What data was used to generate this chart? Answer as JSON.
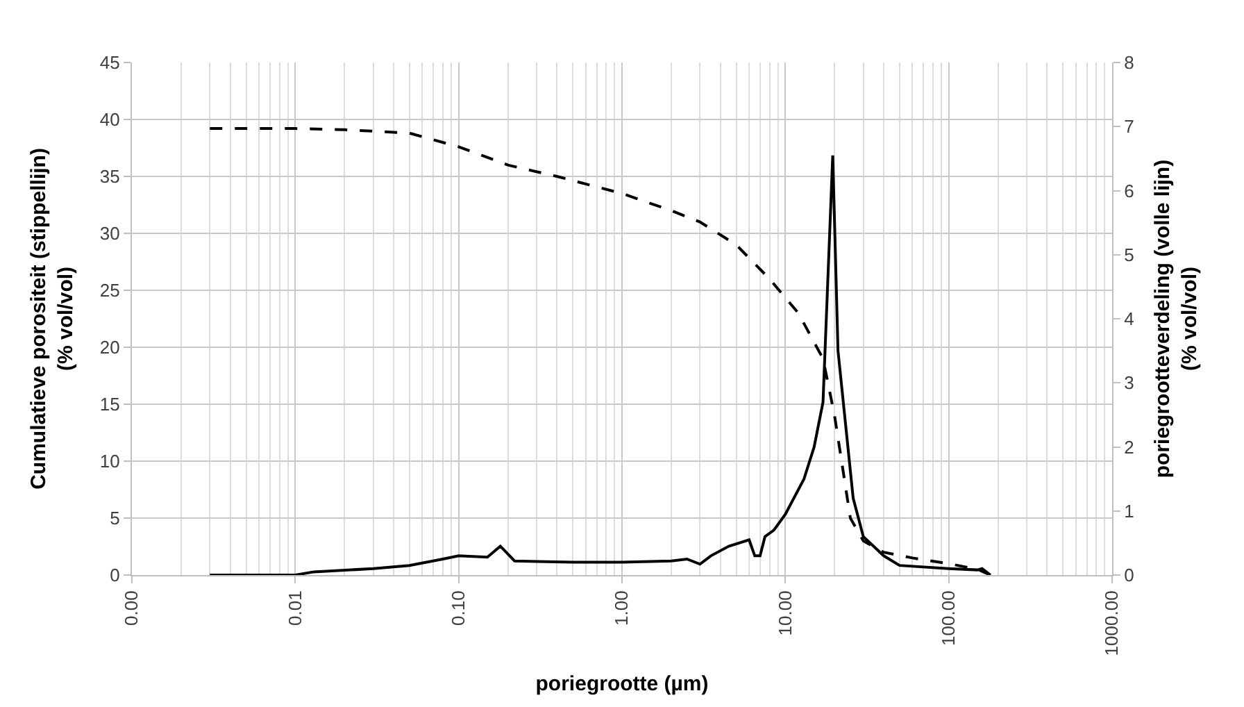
{
  "chart_data": {
    "type": "line",
    "xlabel": "poriegrootte (µm)",
    "ylabel": "Cumulatieve porositeit (stippellijn)\n(% vol/vol)",
    "y2label": "poriegrootteverdeling (volle lijn)\n(% vol/vol)",
    "log": "x",
    "grid": true,
    "marker": "none",
    "xlim": [
      0.001,
      1000
    ],
    "xticks": [
      {
        "value": 0.001,
        "label": "0.00"
      },
      {
        "value": 0.01,
        "label": "0.01"
      },
      {
        "value": 0.1,
        "label": "0.10"
      },
      {
        "value": 1,
        "label": "1.00"
      },
      {
        "value": 10,
        "label": "10.00"
      },
      {
        "value": 100,
        "label": "100.00"
      },
      {
        "value": 1000,
        "label": "1000.00"
      }
    ],
    "ylim": [
      0,
      45
    ],
    "yticks": [
      0,
      5,
      10,
      15,
      20,
      25,
      30,
      35,
      40,
      45
    ],
    "y2lim": [
      0,
      8
    ],
    "y2ticks": [
      0,
      1,
      2,
      3,
      4,
      5,
      6,
      7,
      8
    ],
    "series": [
      {
        "color": "#000000",
        "line_style": "dashed",
        "x": [
          0.003,
          0.01,
          0.02,
          0.05,
          0.1,
          0.2,
          0.4,
          1,
          2,
          3,
          5,
          8,
          12,
          17,
          20,
          25,
          30,
          40,
          60,
          100,
          150,
          180
        ],
        "values": [
          39.2,
          39.2,
          39.1,
          38.8,
          37.6,
          36,
          35,
          33.5,
          32,
          31,
          29,
          26,
          23,
          19,
          14,
          5,
          3,
          2,
          1.5,
          1,
          0.5,
          0
        ]
      },
      {
        "color": "#000000",
        "line_style": "solid",
        "axis": "y2",
        "x": [
          0.003,
          0.01,
          0.013,
          0.03,
          0.05,
          0.08,
          0.1,
          0.15,
          0.18,
          0.22,
          0.5,
          1,
          2,
          2.5,
          3,
          3.5,
          4.5,
          6,
          6.5,
          7,
          7.5,
          8.5,
          10,
          13,
          15,
          17,
          19.5,
          21,
          26,
          30,
          40,
          50,
          100,
          150,
          160,
          180
        ],
        "values": [
          0,
          0,
          0.05,
          0.1,
          0.15,
          0.25,
          0.3,
          0.28,
          0.45,
          0.22,
          0.2,
          0.2,
          0.22,
          0.25,
          0.17,
          0.3,
          0.45,
          0.55,
          0.3,
          0.3,
          0.6,
          0.7,
          0.95,
          1.5,
          2,
          2.7,
          6.55,
          3.5,
          1.2,
          0.6,
          0.3,
          0.15,
          0.1,
          0.08,
          0.1,
          0
        ]
      }
    ]
  }
}
